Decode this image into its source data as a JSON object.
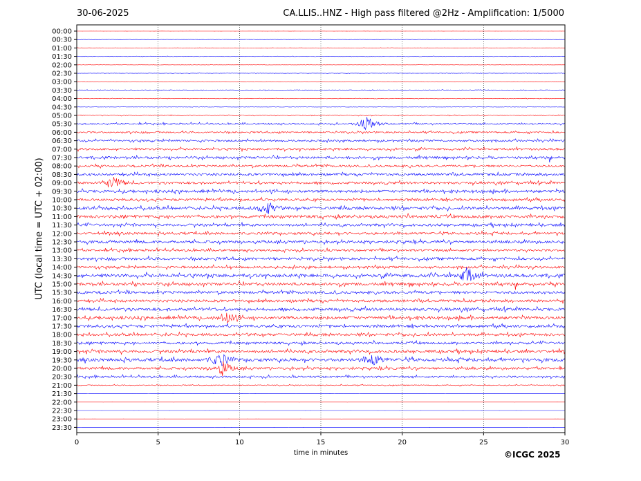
{
  "header": {
    "date": "30-06-2025",
    "title": "CA.LLIS..HNZ - High pass filtered @2Hz - Amplification: 1/5000"
  },
  "footer": {
    "copyright": "©ICGC 2025"
  },
  "colors": {
    "odd_trace": "#ff0000",
    "even_trace": "#0000ff",
    "grid": "#000000"
  },
  "chart_data": {
    "type": "line",
    "xlabel": "time in minutes",
    "ylabel": "UTC (local time = UTC + 02:00)",
    "xlim": [
      0,
      30
    ],
    "x_ticks": [
      "0",
      "5",
      "10",
      "15",
      "20",
      "25",
      "30"
    ],
    "grid_x": true,
    "y_ticks": [
      "00:00",
      "00:30",
      "01:00",
      "01:30",
      "02:00",
      "02:30",
      "03:00",
      "03:30",
      "04:00",
      "04:30",
      "05:00",
      "05:30",
      "06:00",
      "06:30",
      "07:00",
      "07:30",
      "08:00",
      "08:30",
      "09:00",
      "09:30",
      "10:00",
      "10:30",
      "11:00",
      "11:30",
      "12:00",
      "12:30",
      "13:00",
      "13:30",
      "14:00",
      "14:30",
      "15:00",
      "15:30",
      "16:00",
      "16:30",
      "17:00",
      "17:30",
      "18:00",
      "18:30",
      "19:00",
      "19:30",
      "20:00",
      "20:30",
      "21:00",
      "21:30",
      "22:00",
      "22:30",
      "23:00",
      "23:30"
    ],
    "series_colors_alternate": [
      "#ff0000",
      "#0000ff"
    ],
    "activity_level": [
      0.02,
      0.05,
      0.08,
      0.1,
      0.05,
      0.08,
      0.05,
      0.12,
      0.1,
      0.06,
      0.15,
      0.3,
      0.35,
      0.4,
      0.45,
      0.5,
      0.45,
      0.5,
      0.5,
      0.55,
      0.5,
      0.6,
      0.6,
      0.55,
      0.5,
      0.55,
      0.45,
      0.55,
      0.5,
      0.7,
      0.6,
      0.55,
      0.55,
      0.6,
      0.6,
      0.55,
      0.55,
      0.5,
      0.6,
      0.65,
      0.5,
      0.4,
      0.2,
      0.02,
      0.01,
      0.01,
      0.01,
      0.01
    ],
    "events": [
      {
        "row": 11,
        "minute": 17.9,
        "strength": 1.0
      },
      {
        "row": 21,
        "minute": 11.7,
        "strength": 0.9
      },
      {
        "row": 29,
        "minute": 24.0,
        "strength": 1.0
      },
      {
        "row": 39,
        "minute": 8.8,
        "strength": 1.0
      },
      {
        "row": 39,
        "minute": 18.2,
        "strength": 0.9
      },
      {
        "row": 40,
        "minute": 9.0,
        "strength": 1.0
      },
      {
        "row": 34,
        "minute": 9.3,
        "strength": 0.7
      },
      {
        "row": 18,
        "minute": 2.3,
        "strength": 0.8
      }
    ]
  }
}
